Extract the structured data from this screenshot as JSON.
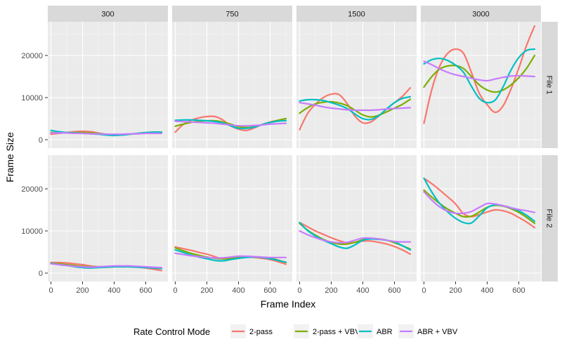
{
  "chart_data": {
    "type": "line",
    "xlabel": "Frame Index",
    "ylabel": "Frame Size",
    "xlim": [
      -20,
      740
    ],
    "ylim": [
      -2000,
      28000
    ],
    "x_ticks": [
      0,
      200,
      400,
      600
    ],
    "y_ticks": [
      0,
      10000,
      20000
    ],
    "y_tick_labels": [
      "0",
      "10000",
      "20000"
    ],
    "grid": true,
    "columns": [
      "300",
      "750",
      "1500",
      "3000"
    ],
    "rows": [
      "File 1",
      "File 2"
    ],
    "legend": {
      "title": "Rate Control Mode",
      "position": "bottom",
      "entries": [
        "2-pass",
        "2-pass + VBV",
        "ABR",
        "ABR + VBV"
      ]
    },
    "colors": {
      "2-pass": "#F8766D",
      "2-pass + VBV": "#7CAE00",
      "ABR": "#00BFC4",
      "ABR + VBV": "#C77CFF"
    },
    "x": [
      0,
      50,
      100,
      150,
      200,
      250,
      300,
      350,
      400,
      450,
      500,
      550,
      600,
      650,
      700
    ],
    "panels": [
      {
        "row": "File 1",
        "column": "300",
        "series": [
          {
            "name": "2-pass",
            "values": [
              1300,
              1500,
              1700,
              1900,
              2000,
              1900,
              1600,
              1300,
              1200,
              1200,
              1300,
              1500,
              1600,
              1700,
              1700
            ]
          },
          {
            "name": "2-pass + VBV",
            "values": [
              1700,
              1700,
              1700,
              1700,
              1700,
              1600,
              1500,
              1300,
              1200,
              1200,
              1300,
              1500,
              1700,
              1800,
              1800
            ]
          },
          {
            "name": "ABR",
            "values": [
              2200,
              1900,
              1700,
              1600,
              1500,
              1400,
              1300,
              1100,
              1000,
              1100,
              1300,
              1500,
              1700,
              1800,
              1800
            ]
          },
          {
            "name": "ABR + VBV",
            "values": [
              1600,
              1600,
              1600,
              1500,
              1500,
              1400,
              1400,
              1300,
              1300,
              1300,
              1400,
              1400,
              1500,
              1500,
              1500
            ]
          }
        ]
      },
      {
        "row": "File 1",
        "column": "750",
        "series": [
          {
            "name": "2-pass",
            "values": [
              1800,
              3600,
              4600,
              5200,
              5500,
              5500,
              4700,
              3300,
              2500,
              2200,
              2800,
              3600,
              4200,
              4600,
              5000
            ]
          },
          {
            "name": "2-pass + VBV",
            "values": [
              3200,
              3700,
              4100,
              4400,
              4500,
              4500,
              4200,
              3700,
              3100,
              2900,
              3100,
              3600,
              4100,
              4600,
              5000
            ]
          },
          {
            "name": "ABR",
            "values": [
              4600,
              4700,
              4700,
              4600,
              4500,
              4300,
              4000,
              3300,
              2700,
              2700,
              3000,
              3600,
              4100,
              4400,
              4500
            ]
          },
          {
            "name": "ABR + VBV",
            "values": [
              4400,
              4300,
              4200,
              4100,
              4000,
              3900,
              3700,
              3500,
              3300,
              3300,
              3400,
              3500,
              3700,
              3800,
              3900
            ]
          }
        ]
      },
      {
        "row": "File 1",
        "column": "1500",
        "series": [
          {
            "name": "2-pass",
            "values": [
              2400,
              6200,
              8400,
              10000,
              10800,
              10700,
              8600,
              5600,
              4000,
              4200,
              5600,
              7300,
              8800,
              10300,
              12300
            ]
          },
          {
            "name": "2-pass + VBV",
            "values": [
              6300,
              7600,
              8500,
              8900,
              9000,
              8700,
              8100,
              7000,
              5900,
              5400,
              5800,
              6600,
              7500,
              8400,
              9600
            ]
          },
          {
            "name": "ABR",
            "values": [
              9200,
              9500,
              9500,
              9300,
              8800,
              8200,
              7400,
              6100,
              5000,
              4800,
              5700,
              7300,
              8800,
              9800,
              10200
            ]
          },
          {
            "name": "ABR + VBV",
            "values": [
              8800,
              8500,
              8200,
              7800,
              7500,
              7300,
              7100,
              7000,
              7000,
              7000,
              7100,
              7300,
              7400,
              7500,
              7600
            ]
          }
        ]
      },
      {
        "row": "File 1",
        "column": "3000",
        "series": [
          {
            "name": "2-pass",
            "values": [
              3900,
              12000,
              17500,
              20500,
              21500,
              20500,
              16000,
              11000,
              8300,
              6500,
              8000,
              12000,
              17000,
              22500,
              27000
            ]
          },
          {
            "name": "2-pass + VBV",
            "values": [
              12500,
              15000,
              16800,
              17500,
              17600,
              16900,
              15000,
              13000,
              11800,
              11300,
              11800,
              13000,
              14700,
              17000,
              20000
            ]
          },
          {
            "name": "ABR",
            "values": [
              18000,
              19000,
              19300,
              18800,
              17700,
              16000,
              12700,
              9800,
              8800,
              9400,
              12500,
              16500,
              19500,
              21200,
              21500
            ]
          },
          {
            "name": "ABR + VBV",
            "values": [
              18600,
              17800,
              16800,
              16000,
              15400,
              15000,
              14600,
              14200,
              14000,
              14400,
              14800,
              15100,
              15200,
              15100,
              15000
            ]
          }
        ]
      },
      {
        "row": "File 2",
        "column": "300",
        "series": [
          {
            "name": "2-pass",
            "values": [
              2500,
              2500,
              2400,
              2200,
              2000,
              1700,
              1500,
              1400,
              1500,
              1500,
              1500,
              1400,
              1200,
              900,
              600
            ]
          },
          {
            "name": "2-pass + VBV",
            "values": [
              2300,
              2200,
              2000,
              1800,
              1600,
              1500,
              1500,
              1500,
              1600,
              1600,
              1600,
              1500,
              1300,
              1200,
              1100
            ]
          },
          {
            "name": "ABR",
            "values": [
              2300,
              2000,
              1800,
              1500,
              1300,
              1200,
              1300,
              1400,
              1500,
              1500,
              1500,
              1400,
              1300,
              1200,
              1100
            ]
          },
          {
            "name": "ABR + VBV",
            "values": [
              2200,
              2000,
              1800,
              1600,
              1500,
              1400,
              1500,
              1600,
              1700,
              1700,
              1700,
              1600,
              1500,
              1400,
              1300
            ]
          }
        ]
      },
      {
        "row": "File 2",
        "column": "750",
        "series": [
          {
            "name": "2-pass",
            "values": [
              6200,
              5800,
              5400,
              4900,
              4500,
              3900,
              3400,
              3500,
              3700,
              3800,
              3700,
              3500,
              3200,
              2700,
              2100
            ]
          },
          {
            "name": "2-pass + VBV",
            "values": [
              6000,
              5300,
              4700,
              4200,
              3800,
              3500,
              3400,
              3500,
              3700,
              3800,
              3800,
              3700,
              3500,
              3100,
              2500
            ]
          },
          {
            "name": "ABR",
            "values": [
              5500,
              4900,
              4300,
              3800,
              3400,
              3000,
              2900,
              3200,
              3500,
              3700,
              3800,
              3700,
              3400,
              3000,
              2600
            ]
          },
          {
            "name": "ABR + VBV",
            "values": [
              4700,
              4400,
              4100,
              3900,
              3700,
              3600,
              3600,
              3800,
              4000,
              4000,
              3900,
              3800,
              3700,
              3700,
              3700
            ]
          }
        ]
      },
      {
        "row": "File 2",
        "column": "1500",
        "series": [
          {
            "name": "2-pass",
            "values": [
              12000,
              11000,
              10000,
              9200,
              8400,
              7700,
              7200,
              7300,
              7600,
              7600,
              7300,
              6900,
              6300,
              5500,
              4500
            ]
          },
          {
            "name": "2-pass + VBV",
            "values": [
              11800,
              10200,
              9000,
              8000,
              7300,
              6900,
              6900,
              7300,
              7900,
              8200,
              8100,
              7800,
              7200,
              6500,
              5700
            ]
          },
          {
            "name": "ABR",
            "values": [
              12000,
              10100,
              8800,
              7800,
              7000,
              6200,
              5900,
              6700,
              7800,
              8100,
              8000,
              7800,
              7400,
              6500,
              5500
            ]
          },
          {
            "name": "ABR + VBV",
            "values": [
              10000,
              9100,
              8400,
              7800,
              7400,
              7200,
              7300,
              7800,
              8300,
              8300,
              8100,
              7800,
              7500,
              7400,
              7400
            ]
          }
        ]
      },
      {
        "row": "File 2",
        "column": "3000",
        "series": [
          {
            "name": "2-pass",
            "values": [
              22500,
              21200,
              19700,
              18100,
              16400,
              14100,
              13400,
              13900,
              14500,
              15000,
              14800,
              14200,
              13200,
              12100,
              10800
            ]
          },
          {
            "name": "2-pass + VBV",
            "values": [
              19700,
              18000,
              16500,
              15200,
              14200,
              13400,
              13500,
              14500,
              15600,
              16100,
              15900,
              15300,
              14400,
              13200,
              11800
            ]
          },
          {
            "name": "ABR",
            "values": [
              22500,
              19200,
              16500,
              14500,
              13000,
              12000,
              11900,
              13600,
              15500,
              16200,
              16000,
              15500,
              14800,
              13700,
              12300
            ]
          },
          {
            "name": "ABR + VBV",
            "values": [
              19300,
              17300,
              15700,
              14700,
              14200,
              14200,
              14600,
              15600,
              16500,
              16400,
              16000,
              15500,
              15100,
              14800,
              14400
            ]
          }
        ]
      }
    ]
  }
}
